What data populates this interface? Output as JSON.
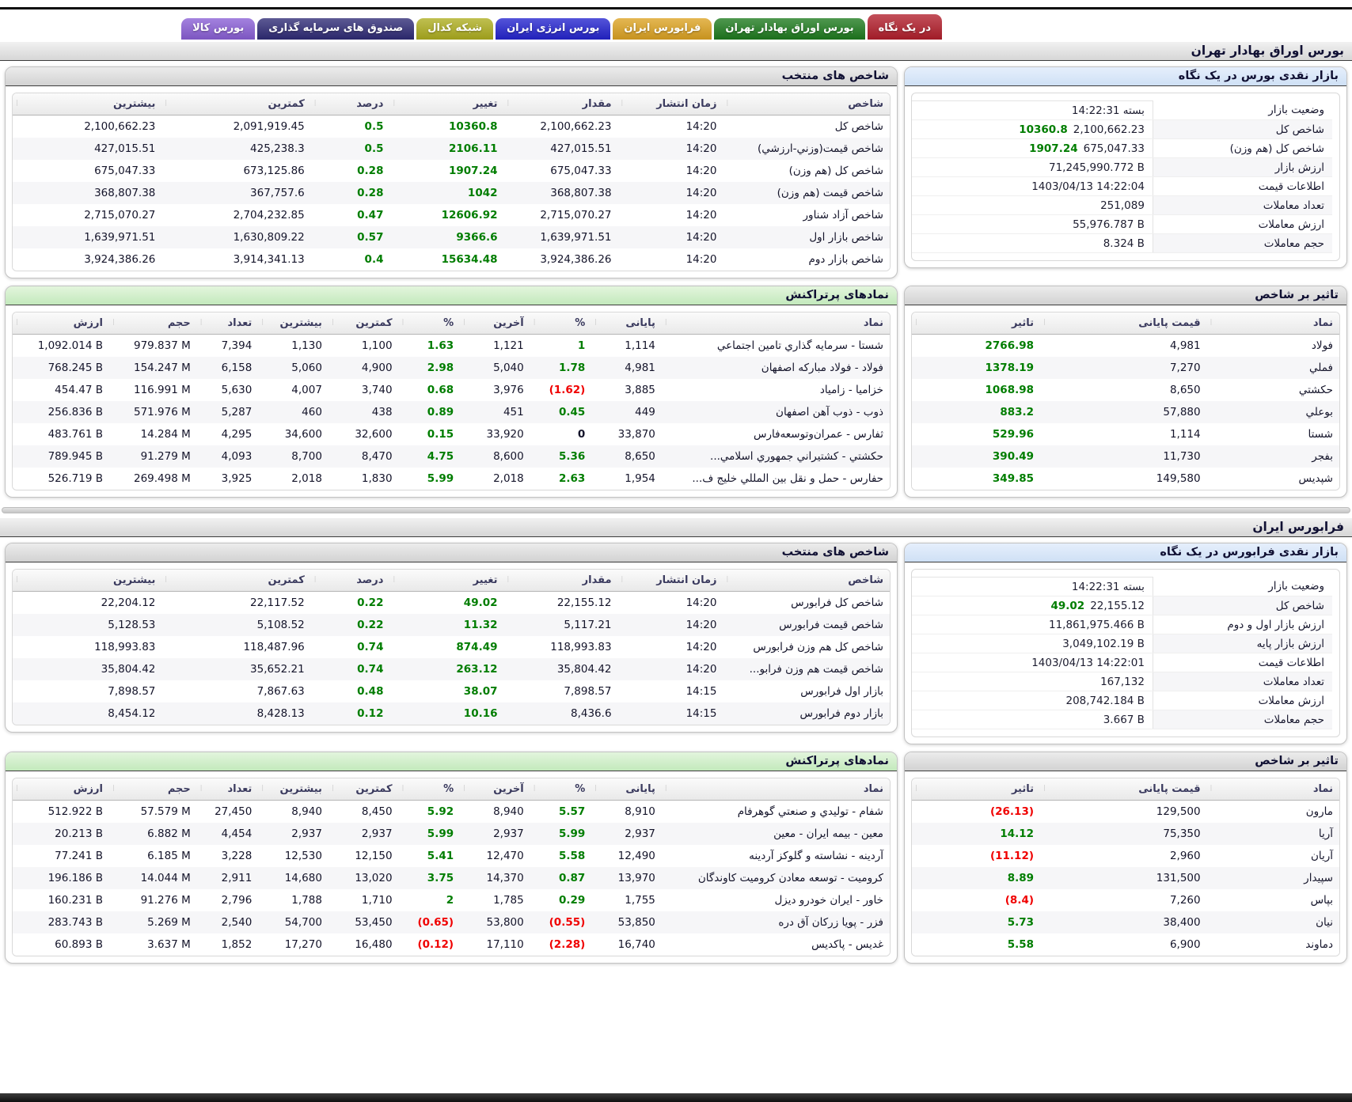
{
  "tabs": [
    {
      "label": "در یک نگاه",
      "color": "#b21f2c",
      "active": true
    },
    {
      "label": "بورس اوراق بهادار تهران",
      "color": "#1e7b1e",
      "active": false
    },
    {
      "label": "فرابورس ایران",
      "color": "#dda322",
      "active": false
    },
    {
      "label": "بورس انرژی ایران",
      "color": "#2424cf",
      "active": false
    },
    {
      "label": "شبکه کدال",
      "color": "#aeae1f",
      "active": false
    },
    {
      "label": "صندوق های سرمایه گذاری",
      "color": "#2f2b76",
      "active": false
    },
    {
      "label": "بورس کالا",
      "color": "#8a5fd6",
      "active": false
    }
  ],
  "bourse": {
    "title": "بورس اوراق بهادار تهران",
    "glance": {
      "title": "بازار نقدی بورس در یک نگاه",
      "rows": [
        {
          "label": "وضعیت بازار",
          "value": "14:22:31 بسته"
        },
        {
          "label": "شاخص کل",
          "value": "2,100,662.23",
          "change": "10360.8"
        },
        {
          "label": "شاخص کل (هم وزن)",
          "value": "675,047.33",
          "change": "1907.24"
        },
        {
          "label": "ارزش بازار",
          "value": "71,245,990.772 B"
        },
        {
          "label": "اطلاعات قیمت",
          "value": "1403/04/13 14:22:04"
        },
        {
          "label": "تعداد معاملات",
          "value": "251,089"
        },
        {
          "label": "ارزش معاملات",
          "value": "55,976.787 B"
        },
        {
          "label": "حجم معاملات",
          "value": "8.324 B"
        }
      ]
    },
    "indices": {
      "title": "شاخص های منتخب",
      "headers": [
        "شاخص",
        "زمان انتشار",
        "مقدار",
        "تغییر",
        "درصد",
        "کمترین",
        "بیشترین"
      ],
      "rows": [
        {
          "name": "شاخص کل",
          "time": "14:20",
          "value": "2,100,662.23",
          "change": "10360.8",
          "percent": "0.5",
          "low": "2,091,919.45",
          "high": "2,100,662.23"
        },
        {
          "name": "شاخص قیمت(وزني-ارزشي)",
          "time": "14:20",
          "value": "427,015.51",
          "change": "2106.11",
          "percent": "0.5",
          "low": "425,238.3",
          "high": "427,015.51"
        },
        {
          "name": "شاخص کل (هم وزن)",
          "time": "14:20",
          "value": "675,047.33",
          "change": "1907.24",
          "percent": "0.28",
          "low": "673,125.86",
          "high": "675,047.33"
        },
        {
          "name": "شاخص قیمت (هم وزن)",
          "time": "14:20",
          "value": "368,807.38",
          "change": "1042",
          "percent": "0.28",
          "low": "367,757.6",
          "high": "368,807.38"
        },
        {
          "name": "شاخص آزاد شناور",
          "time": "14:20",
          "value": "2,715,070.27",
          "change": "12606.92",
          "percent": "0.47",
          "low": "2,704,232.85",
          "high": "2,715,070.27"
        },
        {
          "name": "شاخص بازار اول",
          "time": "14:20",
          "value": "1,639,971.51",
          "change": "9366.6",
          "percent": "0.57",
          "low": "1,630,809.22",
          "high": "1,639,971.51"
        },
        {
          "name": "شاخص بازار دوم",
          "time": "14:20",
          "value": "3,924,386.26",
          "change": "15634.48",
          "percent": "0.4",
          "low": "3,914,341.13",
          "high": "3,924,386.26"
        }
      ]
    },
    "impact": {
      "title": "تاثیر بر شاخص",
      "headers": [
        "نماد",
        "قیمت پایانی",
        "تاثیر"
      ],
      "rows": [
        {
          "symbol": "فولاد",
          "close": "4,981",
          "impact": {
            "v": "2766.98",
            "d": "up"
          }
        },
        {
          "symbol": "فملي",
          "close": "7,270",
          "impact": {
            "v": "1378.19",
            "d": "up"
          }
        },
        {
          "symbol": "حکشتي",
          "close": "8,650",
          "impact": {
            "v": "1068.98",
            "d": "up"
          }
        },
        {
          "symbol": "بوعلي",
          "close": "57,880",
          "impact": {
            "v": "883.2",
            "d": "up"
          }
        },
        {
          "symbol": "شستا",
          "close": "1,114",
          "impact": {
            "v": "529.96",
            "d": "up"
          }
        },
        {
          "symbol": "بفجر",
          "close": "11,730",
          "impact": {
            "v": "390.49",
            "d": "up"
          }
        },
        {
          "symbol": "شپدیس",
          "close": "149,580",
          "impact": {
            "v": "349.85",
            "d": "up"
          }
        }
      ]
    },
    "active": {
      "title": "نمادهای پرتراکنش",
      "headers": [
        "نماد",
        "پایانی",
        "%",
        "آخرین",
        "%",
        "کمترین",
        "بیشترین",
        "تعداد",
        "حجم",
        "ارزش"
      ],
      "rows": [
        {
          "name": "شستا - سرمایه گذاري تامین اجتماعي",
          "close": "1,114",
          "close_pct": {
            "v": "1",
            "d": "up"
          },
          "last": "1,121",
          "last_pct": {
            "v": "1.63",
            "d": "up"
          },
          "low": "1,100",
          "high": "1,130",
          "count": "7,394",
          "volume": "979.837 M",
          "value": "1,092.014 B"
        },
        {
          "name": "فولاد - فولاد مبارکه اصفهان",
          "close": "4,981",
          "close_pct": {
            "v": "1.78",
            "d": "up"
          },
          "last": "5,040",
          "last_pct": {
            "v": "2.98",
            "d": "up"
          },
          "low": "4,900",
          "high": "5,060",
          "count": "6,158",
          "volume": "154.247 M",
          "value": "768.245 B"
        },
        {
          "name": "خزامیا - زامیاد",
          "close": "3,885",
          "close_pct": {
            "v": "(1.62)",
            "d": "down"
          },
          "last": "3,976",
          "last_pct": {
            "v": "0.68",
            "d": "up"
          },
          "low": "3,740",
          "high": "4,007",
          "count": "5,630",
          "volume": "116.991 M",
          "value": "454.47 B"
        },
        {
          "name": "ذوب - ذوب آهن اصفهان",
          "close": "449",
          "close_pct": {
            "v": "0.45",
            "d": "up"
          },
          "last": "451",
          "last_pct": {
            "v": "0.89",
            "d": "up"
          },
          "low": "438",
          "high": "460",
          "count": "5,287",
          "volume": "571.976 M",
          "value": "256.836 B"
        },
        {
          "name": "ثفارس - عمران‌وتوسعه‌فارس",
          "close": "33,870",
          "close_pct": {
            "v": "0",
            "d": "flat"
          },
          "last": "33,920",
          "last_pct": {
            "v": "0.15",
            "d": "up"
          },
          "low": "32,600",
          "high": "34,600",
          "count": "4,295",
          "volume": "14.284 M",
          "value": "483.761 B"
        },
        {
          "name": "حکشتي - کشتیراني جمهوري اسلامي...",
          "close": "8,650",
          "close_pct": {
            "v": "5.36",
            "d": "up"
          },
          "last": "8,600",
          "last_pct": {
            "v": "4.75",
            "d": "up"
          },
          "low": "8,470",
          "high": "8,700",
          "count": "4,093",
          "volume": "91.279 M",
          "value": "789.945 B"
        },
        {
          "name": "حفارس - حمل و نقل بین المللي خلیج ف...",
          "close": "1,954",
          "close_pct": {
            "v": "2.63",
            "d": "up"
          },
          "last": "2,018",
          "last_pct": {
            "v": "5.99",
            "d": "up"
          },
          "low": "1,830",
          "high": "2,018",
          "count": "3,925",
          "volume": "269.498 M",
          "value": "526.719 B"
        }
      ]
    }
  },
  "farabourse": {
    "title": "فرابورس ایران",
    "glance": {
      "title": "بازار نقدی فرابورس در یک نگاه",
      "rows": [
        {
          "label": "وضعیت بازار",
          "value": "14:22:31 بسته"
        },
        {
          "label": "شاخص کل",
          "value": "22,155.12",
          "change": "49.02"
        },
        {
          "label": "ارزش بازار اول و دوم",
          "value": "11,861,975.466 B"
        },
        {
          "label": "ارزش بازار پایه",
          "value": "3,049,102.19 B"
        },
        {
          "label": "اطلاعات قیمت",
          "value": "1403/04/13 14:22:01"
        },
        {
          "label": "تعداد معاملات",
          "value": "167,132"
        },
        {
          "label": "ارزش معاملات",
          "value": "208,742.184 B"
        },
        {
          "label": "حجم معاملات",
          "value": "3.667 B"
        }
      ]
    },
    "indices": {
      "title": "شاخص های منتخب",
      "headers": [
        "شاخص",
        "زمان انتشار",
        "مقدار",
        "تغییر",
        "درصد",
        "کمترین",
        "بیشترین"
      ],
      "rows": [
        {
          "name": "شاخص کل فرابورس",
          "time": "14:20",
          "value": "22,155.12",
          "change": "49.02",
          "percent": "0.22",
          "low": "22,117.52",
          "high": "22,204.12"
        },
        {
          "name": "شاخص قیمت فرابورس",
          "time": "14:20",
          "value": "5,117.21",
          "change": "11.32",
          "percent": "0.22",
          "low": "5,108.52",
          "high": "5,128.53"
        },
        {
          "name": "شاخص کل هم وزن فرابورس",
          "time": "14:20",
          "value": "118,993.83",
          "change": "874.49",
          "percent": "0.74",
          "low": "118,487.96",
          "high": "118,993.83"
        },
        {
          "name": "شاخص قیمت هم وزن فرابو...",
          "time": "14:20",
          "value": "35,804.42",
          "change": "263.12",
          "percent": "0.74",
          "low": "35,652.21",
          "high": "35,804.42"
        },
        {
          "name": "بازار اول فرابورس",
          "time": "14:15",
          "value": "7,898.57",
          "change": "38.07",
          "percent": "0.48",
          "low": "7,867.63",
          "high": "7,898.57"
        },
        {
          "name": "بازار دوم فرابورس",
          "time": "14:15",
          "value": "8,436.6",
          "change": "10.16",
          "percent": "0.12",
          "low": "8,428.13",
          "high": "8,454.12"
        }
      ]
    },
    "impact": {
      "title": "تاثیر بر شاخص",
      "headers": [
        "نماد",
        "قیمت پایانی",
        "تاثیر"
      ],
      "rows": [
        {
          "symbol": "مارون",
          "close": "129,500",
          "impact": {
            "v": "(26.13)",
            "d": "down"
          }
        },
        {
          "symbol": "آریا",
          "close": "75,350",
          "impact": {
            "v": "14.12",
            "d": "up"
          }
        },
        {
          "symbol": "آریان",
          "close": "2,960",
          "impact": {
            "v": "(11.12)",
            "d": "down"
          }
        },
        {
          "symbol": "سپیدار",
          "close": "131,500",
          "impact": {
            "v": "8.89",
            "d": "up"
          }
        },
        {
          "symbol": "بپاس",
          "close": "7,260",
          "impact": {
            "v": "(8.4)",
            "d": "down"
          }
        },
        {
          "symbol": "نیان",
          "close": "38,400",
          "impact": {
            "v": "5.73",
            "d": "up"
          }
        },
        {
          "symbol": "دماوند",
          "close": "6,900",
          "impact": {
            "v": "5.58",
            "d": "up"
          }
        }
      ]
    },
    "active": {
      "title": "نمادهای پرتراکنش",
      "headers": [
        "نماد",
        "پایانی",
        "%",
        "آخرین",
        "%",
        "کمترین",
        "بیشترین",
        "تعداد",
        "حجم",
        "ارزش"
      ],
      "rows": [
        {
          "name": "شفام - تولیدي و صنعتي گوهرفام",
          "close": "8,910",
          "close_pct": {
            "v": "5.57",
            "d": "up"
          },
          "last": "8,940",
          "last_pct": {
            "v": "5.92",
            "d": "up"
          },
          "low": "8,450",
          "high": "8,940",
          "count": "27,450",
          "volume": "57.579 M",
          "value": "512.922 B"
        },
        {
          "name": "معین - بیمه ایران - معین",
          "close": "2,937",
          "close_pct": {
            "v": "5.99",
            "d": "up"
          },
          "last": "2,937",
          "last_pct": {
            "v": "5.99",
            "d": "up"
          },
          "low": "2,937",
          "high": "2,937",
          "count": "4,454",
          "volume": "6.882 M",
          "value": "20.213 B"
        },
        {
          "name": "آردینه - نشاسته و گلوکز آردینه",
          "close": "12,490",
          "close_pct": {
            "v": "5.58",
            "d": "up"
          },
          "last": "12,470",
          "last_pct": {
            "v": "5.41",
            "d": "up"
          },
          "low": "12,150",
          "high": "12,530",
          "count": "3,228",
          "volume": "6.185 M",
          "value": "77.241 B"
        },
        {
          "name": "کرومیت - توسعه معادن کرومیت کاوندگان",
          "close": "13,970",
          "close_pct": {
            "v": "0.87",
            "d": "up"
          },
          "last": "14,370",
          "last_pct": {
            "v": "3.75",
            "d": "up"
          },
          "low": "13,020",
          "high": "14,680",
          "count": "2,911",
          "volume": "14.044 M",
          "value": "196.186 B"
        },
        {
          "name": "خاور - ایران خودرو دیزل",
          "close": "1,755",
          "close_pct": {
            "v": "0.29",
            "d": "up"
          },
          "last": "1,785",
          "last_pct": {
            "v": "2",
            "d": "up"
          },
          "low": "1,710",
          "high": "1,788",
          "count": "2,796",
          "volume": "91.276 M",
          "value": "160.231 B"
        },
        {
          "name": "فزر - پویا زرکان آق دره",
          "close": "53,850",
          "close_pct": {
            "v": "(0.55)",
            "d": "down"
          },
          "last": "53,800",
          "last_pct": {
            "v": "(0.65)",
            "d": "down"
          },
          "low": "53,450",
          "high": "54,700",
          "count": "2,540",
          "volume": "5.269 M",
          "value": "283.743 B"
        },
        {
          "name": "غدیس - پاکدیس",
          "close": "16,740",
          "close_pct": {
            "v": "(2.28)",
            "d": "down"
          },
          "last": "17,110",
          "last_pct": {
            "v": "(0.12)",
            "d": "down"
          },
          "low": "16,480",
          "high": "17,270",
          "count": "1,852",
          "volume": "3.637 M",
          "value": "60.893 B"
        }
      ]
    }
  }
}
